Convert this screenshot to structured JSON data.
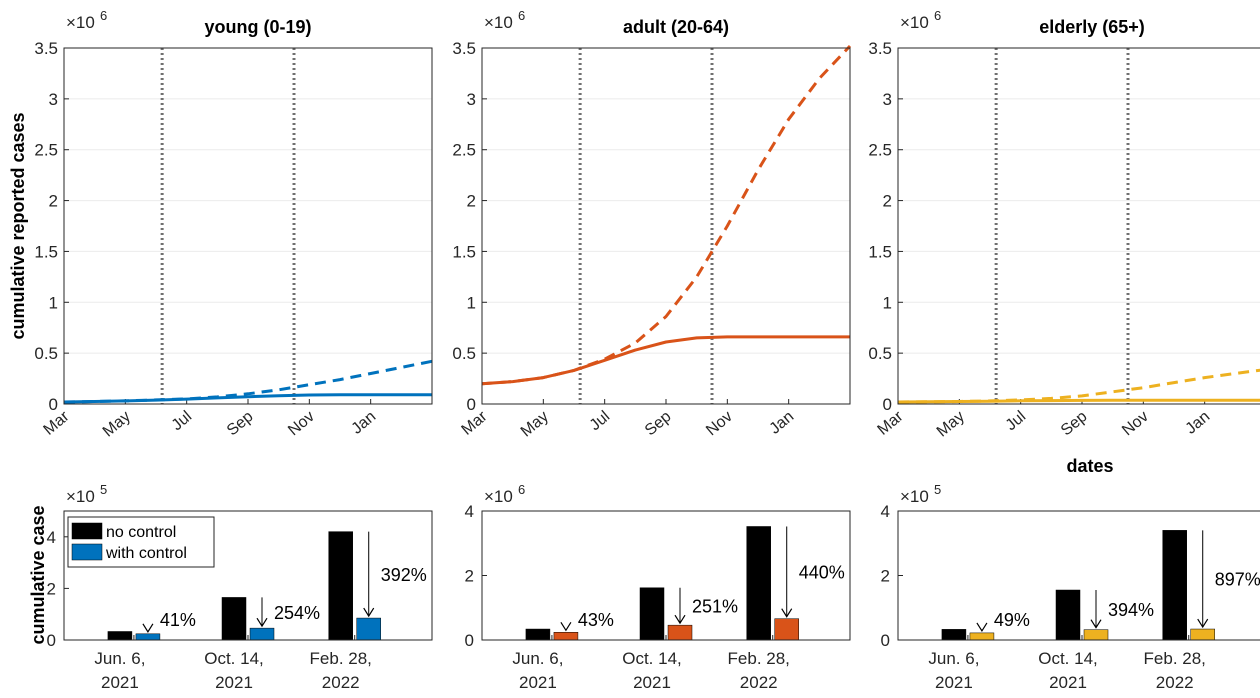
{
  "colors": {
    "young": "#0072BD",
    "adult": "#D95319",
    "elderly": "#EDB120",
    "no_control": "#000000",
    "grid": "#EBEBEB",
    "vline": "#707070"
  },
  "figure": {
    "ylabel_top": "cumulative reported cases",
    "ylabel_bottom": "cumulative case",
    "xlabel_top": "dates"
  },
  "chart_data": [
    {
      "type": "line",
      "title": "young (0-19)",
      "group": "young",
      "exponent_label": "×10",
      "exponent_power": "6",
      "ylim": [
        0,
        3.5
      ],
      "yticks": [
        "0",
        "0.5",
        "1",
        "1.5",
        "2",
        "2.5",
        "3",
        "3.5"
      ],
      "xticks": [
        "Mar",
        "May",
        "Jul",
        "Sep",
        "Nov",
        "Jan"
      ],
      "xlim": [
        0,
        12
      ],
      "vlines": [
        3.2,
        7.5
      ],
      "series": [
        {
          "style": "dashed",
          "x": [
            0,
            1,
            2,
            3,
            4,
            5,
            6,
            7,
            8,
            9,
            10,
            11,
            12
          ],
          "y": [
            0.02,
            0.025,
            0.03,
            0.04,
            0.05,
            0.07,
            0.1,
            0.14,
            0.19,
            0.24,
            0.3,
            0.36,
            0.42
          ]
        },
        {
          "style": "solid",
          "x": [
            0,
            1,
            2,
            3,
            4,
            5,
            6,
            7,
            8,
            9,
            10,
            11,
            12
          ],
          "y": [
            0.02,
            0.025,
            0.03,
            0.038,
            0.048,
            0.06,
            0.072,
            0.082,
            0.088,
            0.09,
            0.09,
            0.09,
            0.09
          ]
        }
      ]
    },
    {
      "type": "line",
      "title": "adult (20-64)",
      "group": "adult",
      "exponent_label": "×10",
      "exponent_power": "6",
      "ylim": [
        0,
        3.5
      ],
      "yticks": [
        "0",
        "0.5",
        "1",
        "1.5",
        "2",
        "2.5",
        "3",
        "3.5"
      ],
      "xticks": [
        "Mar",
        "May",
        "Jul",
        "Sep",
        "Nov",
        "Jan"
      ],
      "xlim": [
        0,
        12
      ],
      "vlines": [
        3.2,
        7.5
      ],
      "series": [
        {
          "style": "dashed",
          "x": [
            0,
            1,
            2,
            3,
            4,
            5,
            6,
            7,
            8,
            9,
            10,
            11,
            12
          ],
          "y": [
            0.2,
            0.22,
            0.26,
            0.33,
            0.44,
            0.6,
            0.86,
            1.25,
            1.75,
            2.3,
            2.8,
            3.2,
            3.52
          ]
        },
        {
          "style": "solid",
          "x": [
            0,
            1,
            2,
            3,
            4,
            5,
            6,
            7,
            8,
            9,
            10,
            11,
            12
          ],
          "y": [
            0.2,
            0.22,
            0.26,
            0.33,
            0.43,
            0.53,
            0.61,
            0.65,
            0.66,
            0.66,
            0.66,
            0.66,
            0.66
          ]
        }
      ]
    },
    {
      "type": "line",
      "title": "elderly (65+)",
      "group": "elderly",
      "exponent_label": "×10",
      "exponent_power": "6",
      "ylim": [
        0,
        3.5
      ],
      "yticks": [
        "0",
        "0.5",
        "1",
        "1.5",
        "2",
        "2.5",
        "3",
        "3.5"
      ],
      "xticks": [
        "Mar",
        "May",
        "Jul",
        "Sep",
        "Nov",
        "Jan"
      ],
      "xlim": [
        0,
        12
      ],
      "vlines": [
        3.2,
        7.5
      ],
      "series": [
        {
          "style": "dashed",
          "x": [
            0,
            1,
            2,
            3,
            4,
            5,
            6,
            7,
            8,
            9,
            10,
            11,
            12
          ],
          "y": [
            0.02,
            0.022,
            0.025,
            0.03,
            0.04,
            0.055,
            0.08,
            0.12,
            0.16,
            0.21,
            0.26,
            0.3,
            0.34
          ]
        },
        {
          "style": "solid",
          "x": [
            0,
            1,
            2,
            3,
            4,
            5,
            6,
            7,
            8,
            9,
            10,
            11,
            12
          ],
          "y": [
            0.02,
            0.022,
            0.025,
            0.028,
            0.031,
            0.033,
            0.035,
            0.036,
            0.037,
            0.037,
            0.037,
            0.037,
            0.037
          ]
        }
      ]
    },
    {
      "type": "bar",
      "group": "young",
      "exponent_label": "×10",
      "exponent_power": "5",
      "ylim": [
        0,
        5
      ],
      "yticks": [
        "0",
        "2",
        "4"
      ],
      "categories": [
        [
          "Jun. 6,",
          "2021"
        ],
        [
          "Oct. 14,",
          "2021"
        ],
        [
          "Feb. 28,",
          "2022"
        ]
      ],
      "series": [
        {
          "name": "no control",
          "values": [
            0.33,
            1.65,
            4.2
          ]
        },
        {
          "name": "with control",
          "values": [
            0.24,
            0.46,
            0.85
          ]
        }
      ],
      "annotations": [
        "41%",
        "254%",
        "392%"
      ],
      "legend": {
        "position": "top-left",
        "entries": [
          "no control",
          "with control"
        ]
      }
    },
    {
      "type": "bar",
      "group": "adult",
      "exponent_label": "×10",
      "exponent_power": "6",
      "ylim": [
        0,
        4
      ],
      "yticks": [
        "0",
        "2",
        "4"
      ],
      "categories": [
        [
          "Jun. 6,",
          "2021"
        ],
        [
          "Oct. 14,",
          "2021"
        ],
        [
          "Feb. 28,",
          "2022"
        ]
      ],
      "series": [
        {
          "name": "no control",
          "values": [
            0.34,
            1.62,
            3.52
          ]
        },
        {
          "name": "with control",
          "values": [
            0.24,
            0.46,
            0.66
          ]
        }
      ],
      "annotations": [
        "43%",
        "251%",
        "440%"
      ]
    },
    {
      "type": "bar",
      "group": "elderly",
      "exponent_label": "×10",
      "exponent_power": "5",
      "ylim": [
        0,
        4
      ],
      "yticks": [
        "0",
        "2",
        "4"
      ],
      "categories": [
        [
          "Jun. 6,",
          "2021"
        ],
        [
          "Oct. 14,",
          "2021"
        ],
        [
          "Feb. 28,",
          "2022"
        ]
      ],
      "series": [
        {
          "name": "no control",
          "values": [
            0.33,
            1.55,
            3.4
          ]
        },
        {
          "name": "with control",
          "values": [
            0.22,
            0.32,
            0.34
          ]
        }
      ],
      "annotations": [
        "49%",
        "394%",
        "897%"
      ]
    }
  ]
}
